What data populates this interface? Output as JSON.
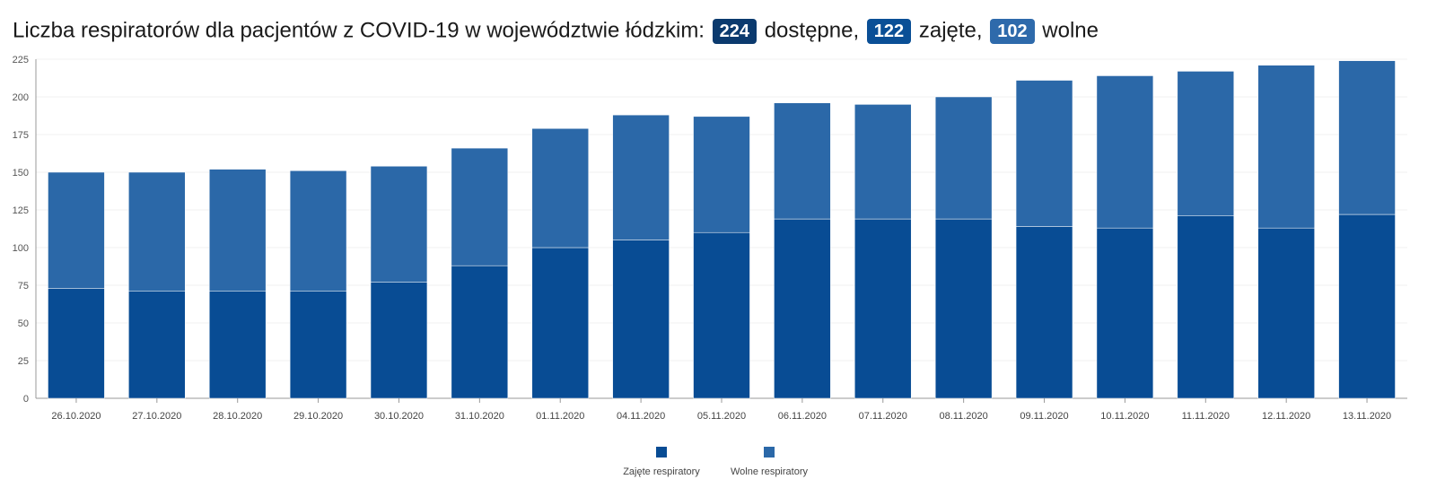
{
  "header": {
    "title_prefix": "Liczba respiratorów dla pacjentów z COVID-19 w województwie łódzkim:",
    "available_value": "224",
    "available_label": "dostępne,",
    "occupied_value": "122",
    "occupied_label": "zajęte,",
    "free_value": "102",
    "free_label": "wolne"
  },
  "colors": {
    "occupied": "#084c94",
    "free": "#2b68a8",
    "badge_available": "#0b3a6e",
    "badge_occupied": "#0a4f96",
    "badge_free": "#2e6aab"
  },
  "chart_data": {
    "type": "bar",
    "stacked": true,
    "categories": [
      "26.10.2020",
      "27.10.2020",
      "28.10.2020",
      "29.10.2020",
      "30.10.2020",
      "31.10.2020",
      "01.11.2020",
      "04.11.2020",
      "05.11.2020",
      "06.11.2020",
      "07.11.2020",
      "08.11.2020",
      "09.11.2020",
      "10.11.2020",
      "11.11.2020",
      "12.11.2020",
      "13.11.2020"
    ],
    "series": [
      {
        "name": "Zajęte respiratory",
        "values": [
          73,
          71,
          71,
          71,
          77,
          88,
          100,
          105,
          110,
          119,
          119,
          119,
          114,
          113,
          121,
          113,
          122
        ]
      },
      {
        "name": "Wolne respiratory",
        "values": [
          77,
          79,
          81,
          80,
          77,
          78,
          79,
          83,
          77,
          77,
          76,
          81,
          97,
          101,
          96,
          108,
          102
        ]
      }
    ],
    "ylim": [
      0,
      225
    ],
    "yticks": [
      0,
      25,
      50,
      75,
      100,
      125,
      150,
      175,
      200,
      225
    ],
    "grid": true,
    "legend": "bottom-center"
  }
}
